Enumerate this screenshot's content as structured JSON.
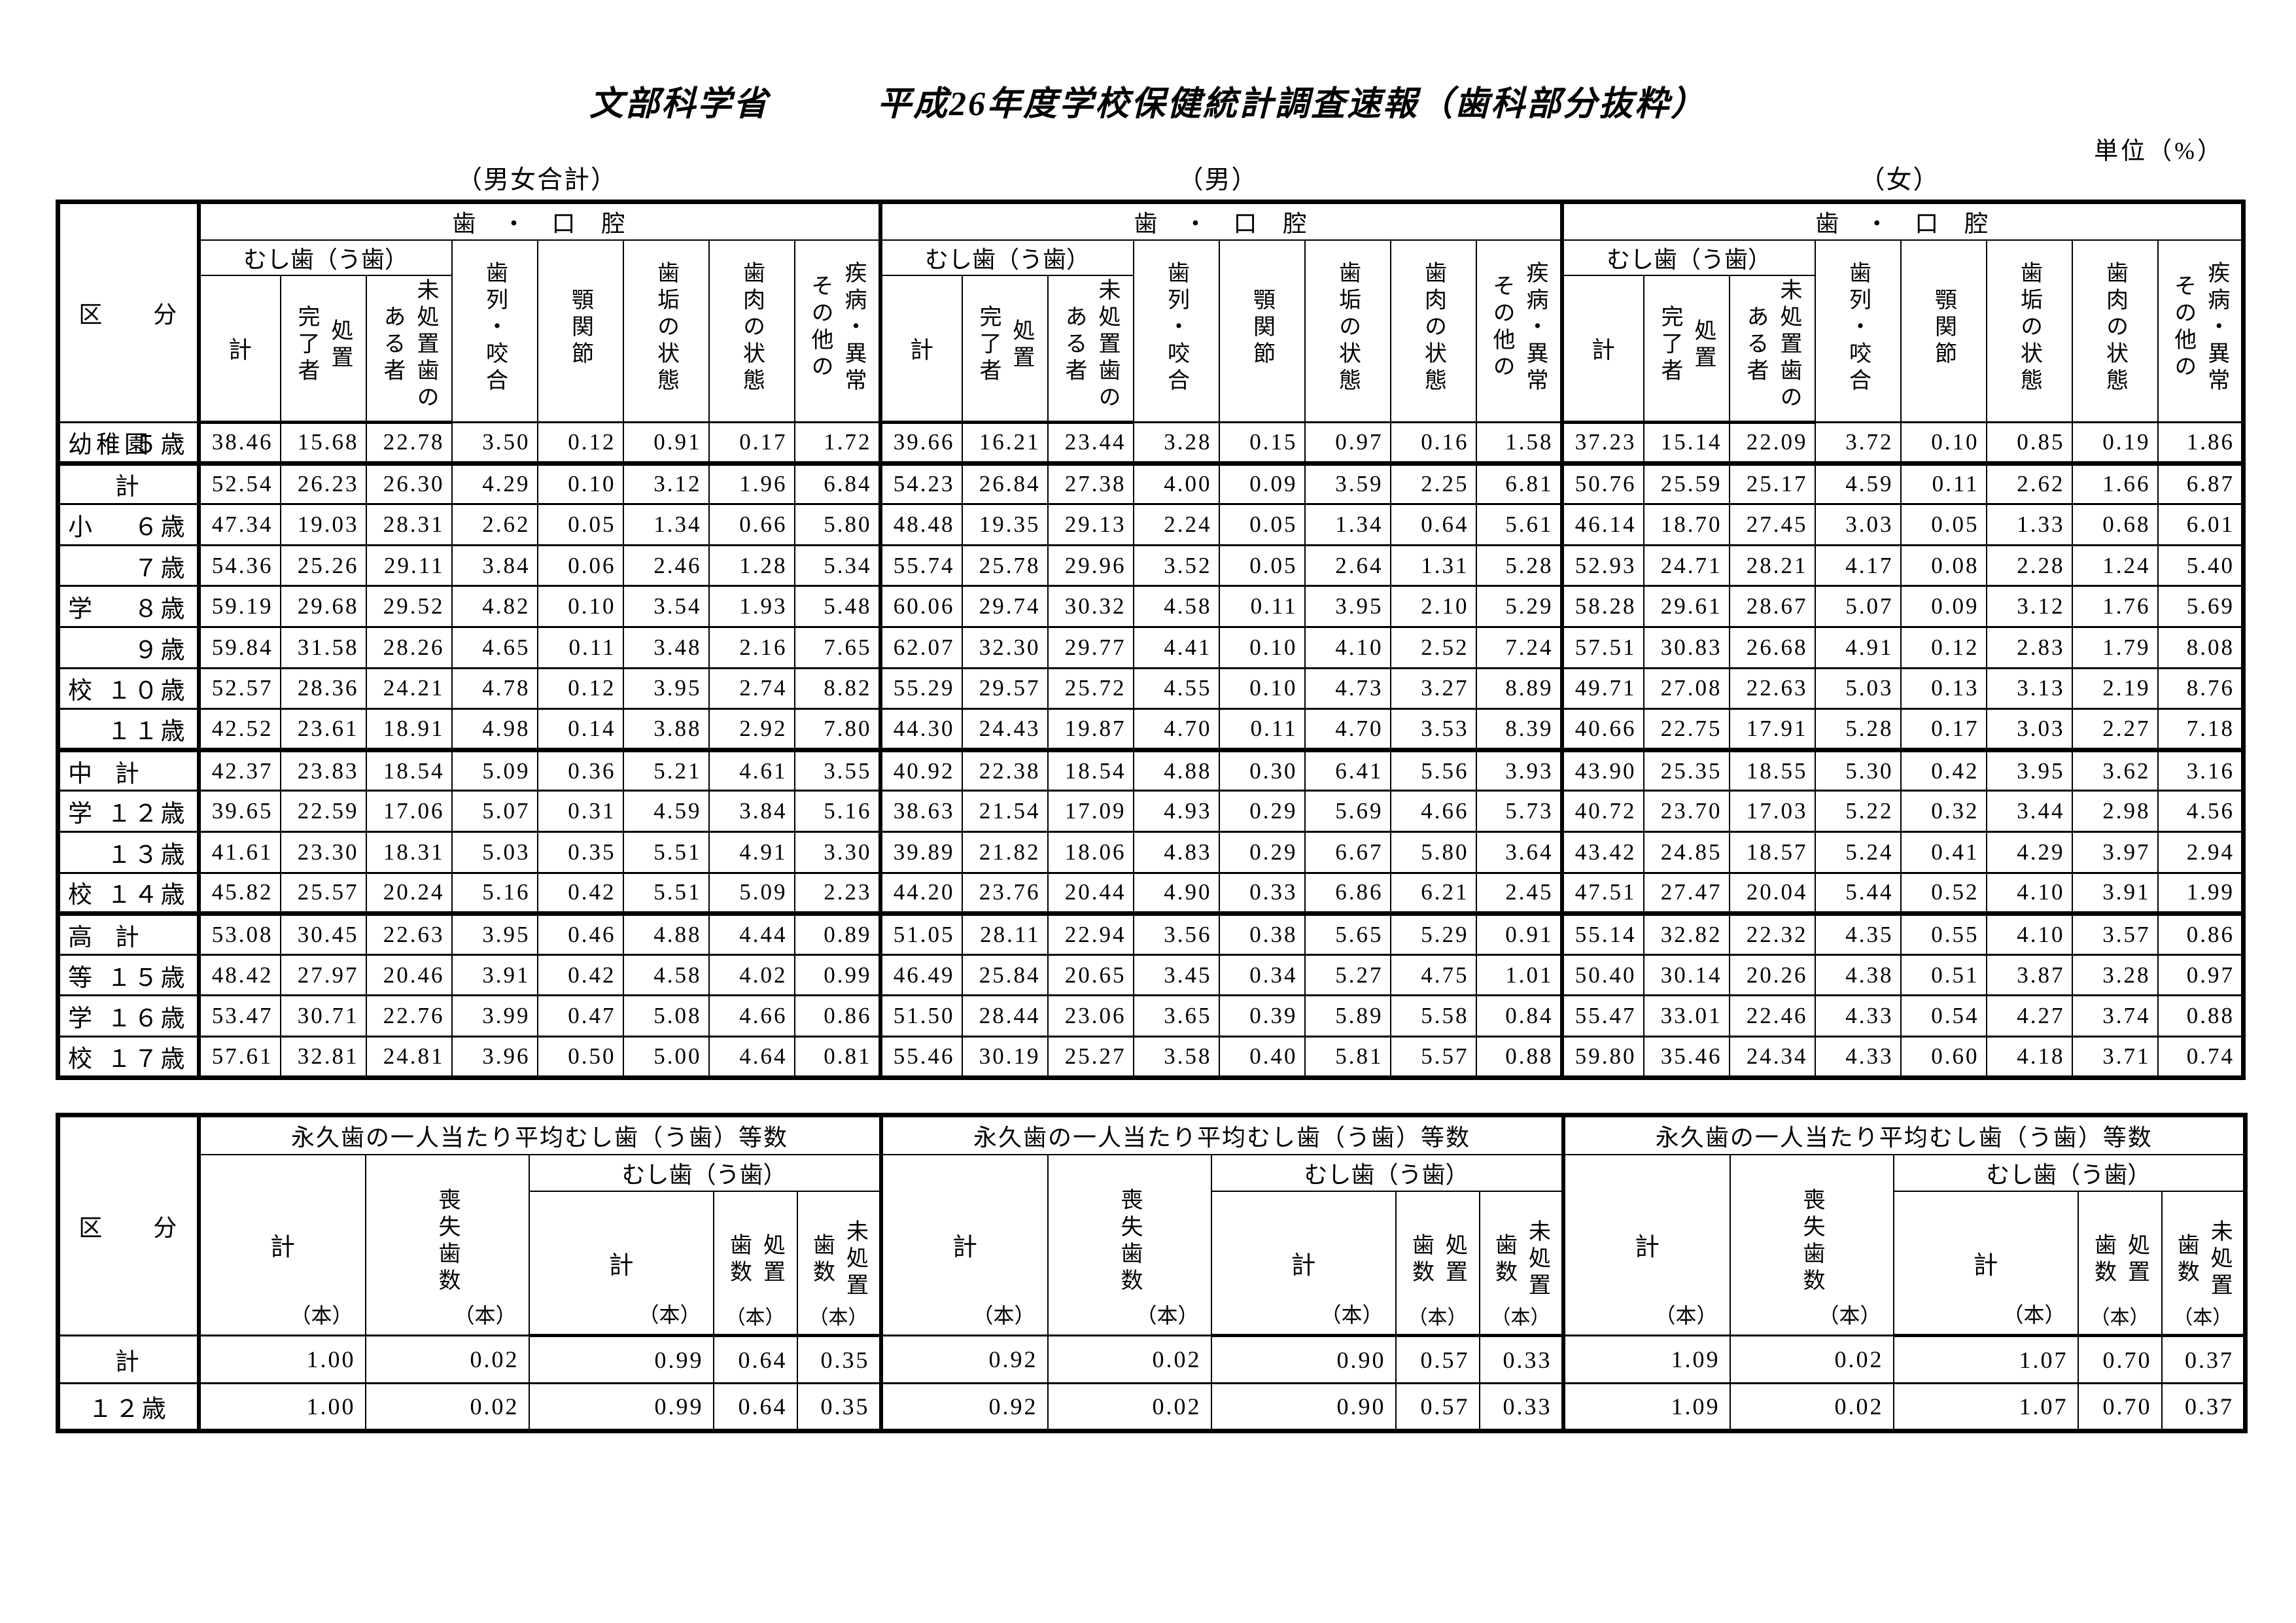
{
  "title": "文部科学省　　　平成26年度学校保健統計調査速報（歯科部分抜粋）",
  "unit_label": "単位（%）",
  "group_labels": [
    "（男女合計）",
    "（男）",
    "（女）"
  ],
  "upper": {
    "corner": "区　　分",
    "section_header": "歯　・　口　腔",
    "subgroup_header": "むし歯（う歯）",
    "columns": [
      "計",
      "処置\n完了者",
      "未処置歯の\nある者",
      "歯列・咬合",
      "顎関節",
      "歯垢の状態",
      "歯肉の状態",
      "疾病・異常\nその他の"
    ],
    "rows": [
      {
        "school": "幼稚園",
        "label": "５歳",
        "align": "right",
        "section_start": false,
        "values": {
          "total": [
            "38.46",
            "15.68",
            "22.78",
            "3.50",
            "0.12",
            "0.91",
            "0.17",
            "1.72"
          ],
          "male": [
            "39.66",
            "16.21",
            "23.44",
            "3.28",
            "0.15",
            "0.97",
            "0.16",
            "1.58"
          ],
          "female": [
            "37.23",
            "15.14",
            "22.09",
            "3.72",
            "0.10",
            "0.85",
            "0.19",
            "1.86"
          ]
        }
      },
      {
        "school": "",
        "label": "計",
        "align": "center",
        "section_start": true,
        "values": {
          "total": [
            "52.54",
            "26.23",
            "26.30",
            "4.29",
            "0.10",
            "3.12",
            "1.96",
            "6.84"
          ],
          "male": [
            "54.23",
            "26.84",
            "27.38",
            "4.00",
            "0.09",
            "3.59",
            "2.25",
            "6.81"
          ],
          "female": [
            "50.76",
            "25.59",
            "25.17",
            "4.59",
            "0.11",
            "2.62",
            "1.66",
            "6.87"
          ]
        }
      },
      {
        "school": "小",
        "label": "６歳",
        "align": "right",
        "section_start": false,
        "values": {
          "total": [
            "47.34",
            "19.03",
            "28.31",
            "2.62",
            "0.05",
            "1.34",
            "0.66",
            "5.80"
          ],
          "male": [
            "48.48",
            "19.35",
            "29.13",
            "2.24",
            "0.05",
            "1.34",
            "0.64",
            "5.61"
          ],
          "female": [
            "46.14",
            "18.70",
            "27.45",
            "3.03",
            "0.05",
            "1.33",
            "0.68",
            "6.01"
          ]
        }
      },
      {
        "school": "",
        "label": "７歳",
        "align": "right",
        "section_start": false,
        "values": {
          "total": [
            "54.36",
            "25.26",
            "29.11",
            "3.84",
            "0.06",
            "2.46",
            "1.28",
            "5.34"
          ],
          "male": [
            "55.74",
            "25.78",
            "29.96",
            "3.52",
            "0.05",
            "2.64",
            "1.31",
            "5.28"
          ],
          "female": [
            "52.93",
            "24.71",
            "28.21",
            "4.17",
            "0.08",
            "2.28",
            "1.24",
            "5.40"
          ]
        }
      },
      {
        "school": "学",
        "label": "８歳",
        "align": "right",
        "section_start": false,
        "values": {
          "total": [
            "59.19",
            "29.68",
            "29.52",
            "4.82",
            "0.10",
            "3.54",
            "1.93",
            "5.48"
          ],
          "male": [
            "60.06",
            "29.74",
            "30.32",
            "4.58",
            "0.11",
            "3.95",
            "2.10",
            "5.29"
          ],
          "female": [
            "58.28",
            "29.61",
            "28.67",
            "5.07",
            "0.09",
            "3.12",
            "1.76",
            "5.69"
          ]
        }
      },
      {
        "school": "",
        "label": "９歳",
        "align": "right",
        "section_start": false,
        "values": {
          "total": [
            "59.84",
            "31.58",
            "28.26",
            "4.65",
            "0.11",
            "3.48",
            "2.16",
            "7.65"
          ],
          "male": [
            "62.07",
            "32.30",
            "29.77",
            "4.41",
            "0.10",
            "4.10",
            "2.52",
            "7.24"
          ],
          "female": [
            "57.51",
            "30.83",
            "26.68",
            "4.91",
            "0.12",
            "2.83",
            "1.79",
            "8.08"
          ]
        }
      },
      {
        "school": "校",
        "label": "１０歳",
        "align": "right",
        "section_start": false,
        "values": {
          "total": [
            "52.57",
            "28.36",
            "24.21",
            "4.78",
            "0.12",
            "3.95",
            "2.74",
            "8.82"
          ],
          "male": [
            "55.29",
            "29.57",
            "25.72",
            "4.55",
            "0.10",
            "4.73",
            "3.27",
            "8.89"
          ],
          "female": [
            "49.71",
            "27.08",
            "22.63",
            "5.03",
            "0.13",
            "3.13",
            "2.19",
            "8.76"
          ]
        }
      },
      {
        "school": "",
        "label": "１１歳",
        "align": "right",
        "section_start": false,
        "values": {
          "total": [
            "42.52",
            "23.61",
            "18.91",
            "4.98",
            "0.14",
            "3.88",
            "2.92",
            "7.80"
          ],
          "male": [
            "44.30",
            "24.43",
            "19.87",
            "4.70",
            "0.11",
            "4.70",
            "3.53",
            "8.39"
          ],
          "female": [
            "40.66",
            "22.75",
            "17.91",
            "5.28",
            "0.17",
            "3.03",
            "2.27",
            "7.18"
          ]
        }
      },
      {
        "school": "中",
        "label": "計",
        "align": "center",
        "section_start": true,
        "values": {
          "total": [
            "42.37",
            "23.83",
            "18.54",
            "5.09",
            "0.36",
            "5.21",
            "4.61",
            "3.55"
          ],
          "male": [
            "40.92",
            "22.38",
            "18.54",
            "4.88",
            "0.30",
            "6.41",
            "5.56",
            "3.93"
          ],
          "female": [
            "43.90",
            "25.35",
            "18.55",
            "5.30",
            "0.42",
            "3.95",
            "3.62",
            "3.16"
          ]
        }
      },
      {
        "school": "学",
        "label": "１２歳",
        "align": "right",
        "section_start": false,
        "values": {
          "total": [
            "39.65",
            "22.59",
            "17.06",
            "5.07",
            "0.31",
            "4.59",
            "3.84",
            "5.16"
          ],
          "male": [
            "38.63",
            "21.54",
            "17.09",
            "4.93",
            "0.29",
            "5.69",
            "4.66",
            "5.73"
          ],
          "female": [
            "40.72",
            "23.70",
            "17.03",
            "5.22",
            "0.32",
            "3.44",
            "2.98",
            "4.56"
          ]
        }
      },
      {
        "school": "",
        "label": "１３歳",
        "align": "right",
        "section_start": false,
        "values": {
          "total": [
            "41.61",
            "23.30",
            "18.31",
            "5.03",
            "0.35",
            "5.51",
            "4.91",
            "3.30"
          ],
          "male": [
            "39.89",
            "21.82",
            "18.06",
            "4.83",
            "0.29",
            "6.67",
            "5.80",
            "3.64"
          ],
          "female": [
            "43.42",
            "24.85",
            "18.57",
            "5.24",
            "0.41",
            "4.29",
            "3.97",
            "2.94"
          ]
        }
      },
      {
        "school": "校",
        "label": "１４歳",
        "align": "right",
        "section_start": false,
        "values": {
          "total": [
            "45.82",
            "25.57",
            "20.24",
            "5.16",
            "0.42",
            "5.51",
            "5.09",
            "2.23"
          ],
          "male": [
            "44.20",
            "23.76",
            "20.44",
            "4.90",
            "0.33",
            "6.86",
            "6.21",
            "2.45"
          ],
          "female": [
            "47.51",
            "27.47",
            "20.04",
            "5.44",
            "0.52",
            "4.10",
            "3.91",
            "1.99"
          ]
        }
      },
      {
        "school": "高",
        "label": "計",
        "align": "center",
        "section_start": true,
        "values": {
          "total": [
            "53.08",
            "30.45",
            "22.63",
            "3.95",
            "0.46",
            "4.88",
            "4.44",
            "0.89"
          ],
          "male": [
            "51.05",
            "28.11",
            "22.94",
            "3.56",
            "0.38",
            "5.65",
            "5.29",
            "0.91"
          ],
          "female": [
            "55.14",
            "32.82",
            "22.32",
            "4.35",
            "0.55",
            "4.10",
            "3.57",
            "0.86"
          ]
        }
      },
      {
        "school": "等",
        "label": "１５歳",
        "align": "right",
        "section_start": false,
        "values": {
          "total": [
            "48.42",
            "27.97",
            "20.46",
            "3.91",
            "0.42",
            "4.58",
            "4.02",
            "0.99"
          ],
          "male": [
            "46.49",
            "25.84",
            "20.65",
            "3.45",
            "0.34",
            "5.27",
            "4.75",
            "1.01"
          ],
          "female": [
            "50.40",
            "30.14",
            "20.26",
            "4.38",
            "0.51",
            "3.87",
            "3.28",
            "0.97"
          ]
        }
      },
      {
        "school": "学",
        "label": "１６歳",
        "align": "right",
        "section_start": false,
        "values": {
          "total": [
            "53.47",
            "30.71",
            "22.76",
            "3.99",
            "0.47",
            "5.08",
            "4.66",
            "0.86"
          ],
          "male": [
            "51.50",
            "28.44",
            "23.06",
            "3.65",
            "0.39",
            "5.89",
            "5.58",
            "0.84"
          ],
          "female": [
            "55.47",
            "33.01",
            "22.46",
            "4.33",
            "0.54",
            "4.27",
            "3.74",
            "0.88"
          ]
        }
      },
      {
        "school": "校",
        "label": "１７歳",
        "align": "right",
        "section_start": false,
        "values": {
          "total": [
            "57.61",
            "32.81",
            "24.81",
            "3.96",
            "0.50",
            "5.00",
            "4.64",
            "0.81"
          ],
          "male": [
            "55.46",
            "30.19",
            "25.27",
            "3.58",
            "0.40",
            "5.81",
            "5.57",
            "0.88"
          ],
          "female": [
            "59.80",
            "35.46",
            "24.34",
            "4.33",
            "0.60",
            "4.18",
            "3.71",
            "0.74"
          ]
        }
      }
    ]
  },
  "lower": {
    "corner": "区　　分",
    "section_header": "永久歯の一人当たり平均むし歯（う歯）等数",
    "subgroup_header": "むし歯（う歯）",
    "columns": [
      {
        "label": "計",
        "unit": "（本）"
      },
      {
        "label": "喪失歯数",
        "unit": "（本）"
      },
      {
        "label": "計",
        "unit": "（本）"
      },
      {
        "label": "処置\n歯数",
        "unit": "（本）"
      },
      {
        "label": "未処置\n歯数",
        "unit": "（本）"
      }
    ],
    "rows": [
      {
        "school": "",
        "label": "計",
        "align": "center",
        "section_start": false,
        "values": {
          "total": [
            "1.00",
            "0.02",
            "0.99",
            "0.64",
            "0.35"
          ],
          "male": [
            "0.92",
            "0.02",
            "0.90",
            "0.57",
            "0.33"
          ],
          "female": [
            "1.09",
            "0.02",
            "1.07",
            "0.70",
            "0.37"
          ]
        }
      },
      {
        "school": "",
        "label": "１２歳",
        "align": "center",
        "section_start": false,
        "values": {
          "total": [
            "1.00",
            "0.02",
            "0.99",
            "0.64",
            "0.35"
          ],
          "male": [
            "0.92",
            "0.02",
            "0.90",
            "0.57",
            "0.33"
          ],
          "female": [
            "1.09",
            "0.02",
            "1.07",
            "0.70",
            "0.37"
          ]
        }
      }
    ]
  }
}
